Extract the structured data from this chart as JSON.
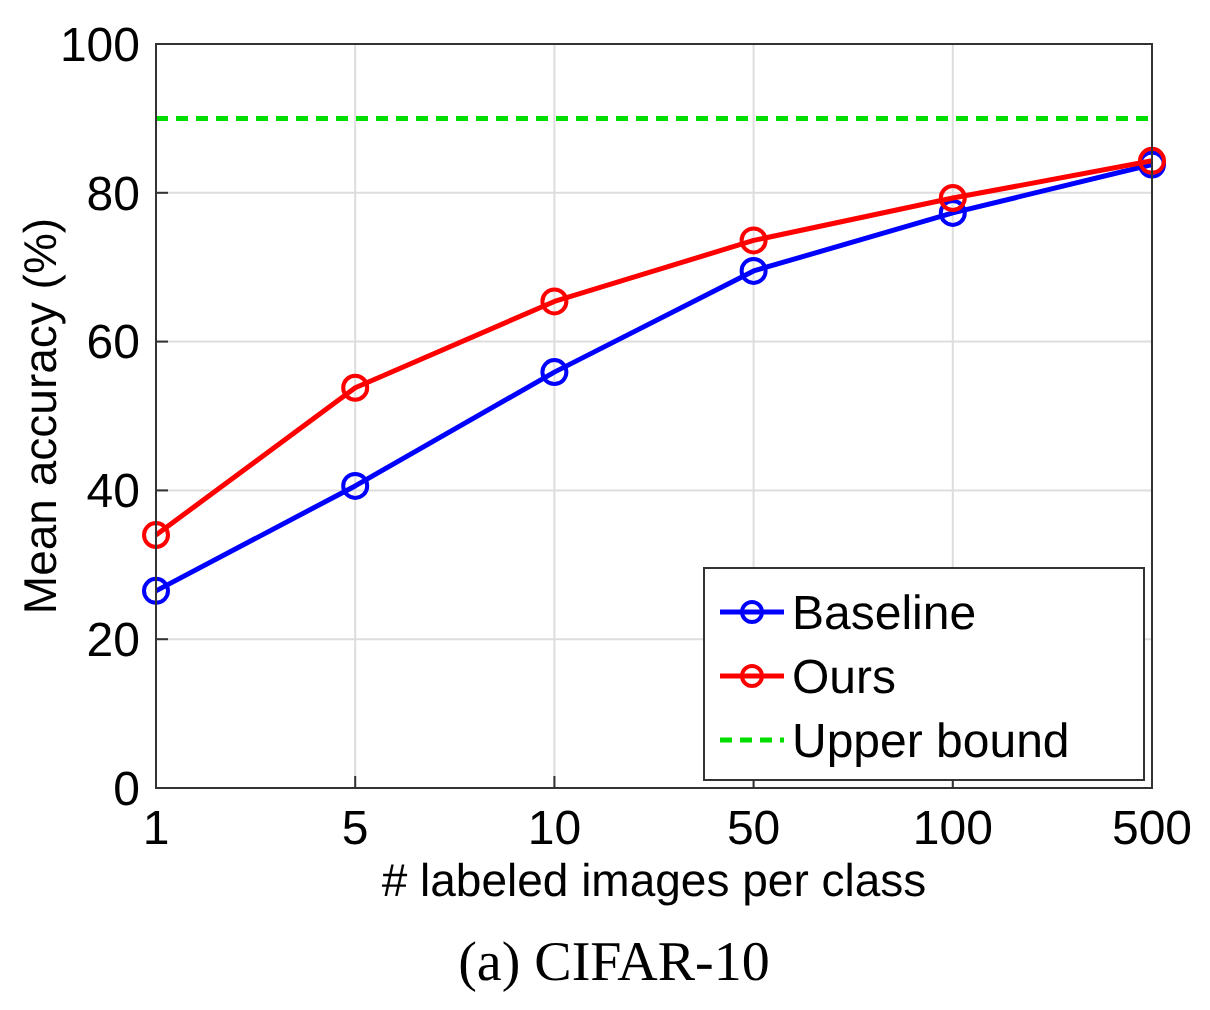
{
  "chart_data": {
    "type": "line",
    "title": "(a) CIFAR-10",
    "xlabel": "# labeled images per class",
    "ylabel": "Mean accuracy (%)",
    "categories": [
      "1",
      "5",
      "10",
      "50",
      "100",
      "500"
    ],
    "series": [
      {
        "name": "Baseline",
        "color": "#0000ff",
        "values": [
          26.5,
          40.6,
          55.9,
          69.5,
          77.3,
          83.8
        ],
        "marker": "circle"
      },
      {
        "name": "Ours",
        "color": "#ff0000",
        "values": [
          34,
          53.8,
          65.4,
          73.6,
          79.3,
          84.3
        ],
        "marker": "circle"
      },
      {
        "name": "Upper bound",
        "color": "#00dd00",
        "values": [
          90,
          90,
          90,
          90,
          90,
          90
        ],
        "marker": "none",
        "line_style": "dashed"
      }
    ],
    "ylim": [
      0,
      100
    ],
    "yticks": [
      0,
      20,
      40,
      60,
      80,
      100
    ],
    "grid": true,
    "legend": "bottom right",
    "line_style": "solid"
  }
}
